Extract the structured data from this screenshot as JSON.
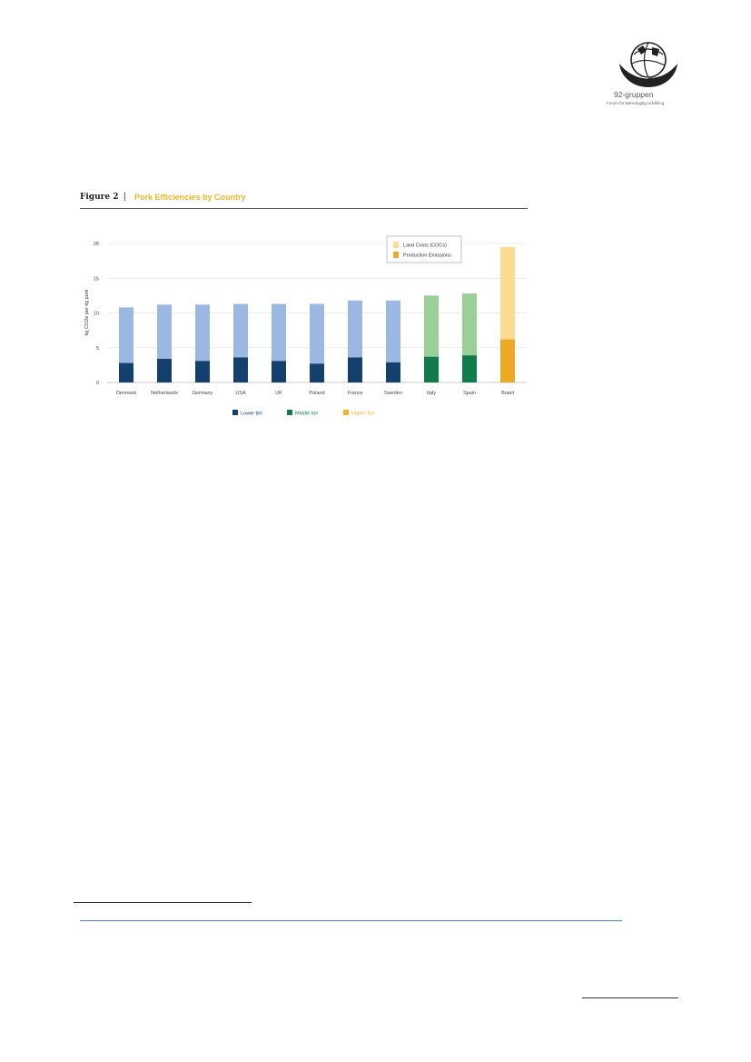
{
  "logo": {
    "name": "92-gruppen",
    "subtitle": "Forum for Bæredygtig Udvikling",
    "icon": "globe-hands-icon"
  },
  "figure": {
    "label": "Figure 2",
    "separator": "|",
    "title": "Pork Efficiencies by Country"
  },
  "chart_data": {
    "type": "bar",
    "stacked": true,
    "ylabel": "kg CO2e per kg pork",
    "ylim": [
      0,
      20
    ],
    "yticks": [
      0,
      5,
      10,
      15,
      20
    ],
    "grid": true,
    "categories": [
      "Denmark",
      "Netherlands",
      "Germany",
      "USA",
      "UK",
      "Poland",
      "France",
      "Sweden",
      "Italy",
      "Spain",
      "Brazil"
    ],
    "tiers": [
      "lower",
      "lower",
      "lower",
      "lower",
      "lower",
      "lower",
      "lower",
      "lower",
      "middle",
      "middle",
      "higher"
    ],
    "series": [
      {
        "name": "Production Emissions",
        "values": [
          2.8,
          3.4,
          3.1,
          3.6,
          3.1,
          2.7,
          3.6,
          2.9,
          3.7,
          3.9,
          6.2
        ]
      },
      {
        "name": "Land Costs (COCs)",
        "values": [
          8.0,
          7.8,
          8.1,
          7.7,
          8.2,
          8.6,
          8.2,
          8.9,
          8.8,
          8.9,
          13.3
        ]
      }
    ],
    "legend_position": "top-right",
    "tier_legend": [
      {
        "key": "lower",
        "label": "Lower tier",
        "color": "#13406e"
      },
      {
        "key": "middle",
        "label": "Middle tier",
        "color": "#0e7d4a"
      },
      {
        "key": "higher",
        "label": "Higher tier",
        "color": "#f0b429"
      }
    ],
    "colors": {
      "lower": {
        "production": "#13406e",
        "land": "#9ab8e2"
      },
      "middle": {
        "production": "#0e7d4a",
        "land": "#9bcf98"
      },
      "higher": {
        "production": "#eca923",
        "land": "#fddb93"
      }
    }
  }
}
